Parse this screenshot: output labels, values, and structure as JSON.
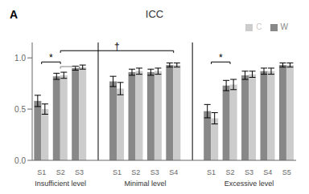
{
  "chart_data": {
    "type": "bar",
    "title": "ICC",
    "groups": [
      {
        "label": "Insufficient level",
        "categories": [
          "S1",
          "S2",
          "S3"
        ]
      },
      {
        "label": "Minimal level",
        "categories": [
          "S1",
          "S2",
          "S3",
          "S4"
        ]
      },
      {
        "label": "Excessive level",
        "categories": [
          "S1",
          "S2",
          "S3",
          "S4",
          "S5"
        ]
      }
    ],
    "series": [
      {
        "name": "W",
        "color": "#888888",
        "values": [
          0.58,
          0.82,
          0.9,
          0.77,
          0.86,
          0.86,
          0.93,
          0.48,
          0.73,
          0.83,
          0.87,
          0.93
        ],
        "errors": [
          0.055,
          0.03,
          0.02,
          0.05,
          0.03,
          0.03,
          0.02,
          0.065,
          0.05,
          0.04,
          0.03,
          0.02
        ]
      },
      {
        "name": "C",
        "color": "#cccccc",
        "values": [
          0.5,
          0.83,
          0.91,
          0.7,
          0.87,
          0.87,
          0.93,
          0.41,
          0.74,
          0.84,
          0.87,
          0.93
        ],
        "errors": [
          0.05,
          0.03,
          0.02,
          0.06,
          0.03,
          0.03,
          0.02,
          0.055,
          0.05,
          0.03,
          0.03,
          0.02
        ]
      }
    ],
    "ylim": [
      0.0,
      1.15
    ],
    "yticks": [
      {
        "value": 0.0,
        "label": "0.0"
      },
      {
        "value": 0.5,
        "label": "0.5"
      },
      {
        "value": 1.0,
        "label": "1.0"
      }
    ],
    "grid": false,
    "legend": "upper right",
    "annotations": [
      {
        "text": "A"
      },
      {
        "text": "*",
        "from": [
          "Insufficient level",
          "S1"
        ],
        "to": [
          "Insufficient level",
          "S2"
        ],
        "y": 0.96,
        "color": "black"
      },
      {
        "from": [
          "Insufficient level",
          "S2"
        ],
        "to": [
          "Insufficient level",
          "S3"
        ],
        "y": 0.915,
        "color": "gray"
      },
      {
        "text": "†",
        "from": [
          "Insufficient level",
          "S2"
        ],
        "to": [
          "Minimal level",
          "S4"
        ],
        "y": 1.07,
        "color": "black"
      },
      {
        "text": "*",
        "from": [
          "Excessive level",
          "S1"
        ],
        "to": [
          "Excessive level",
          "S2"
        ],
        "y": 0.96,
        "color": "black"
      }
    ]
  }
}
